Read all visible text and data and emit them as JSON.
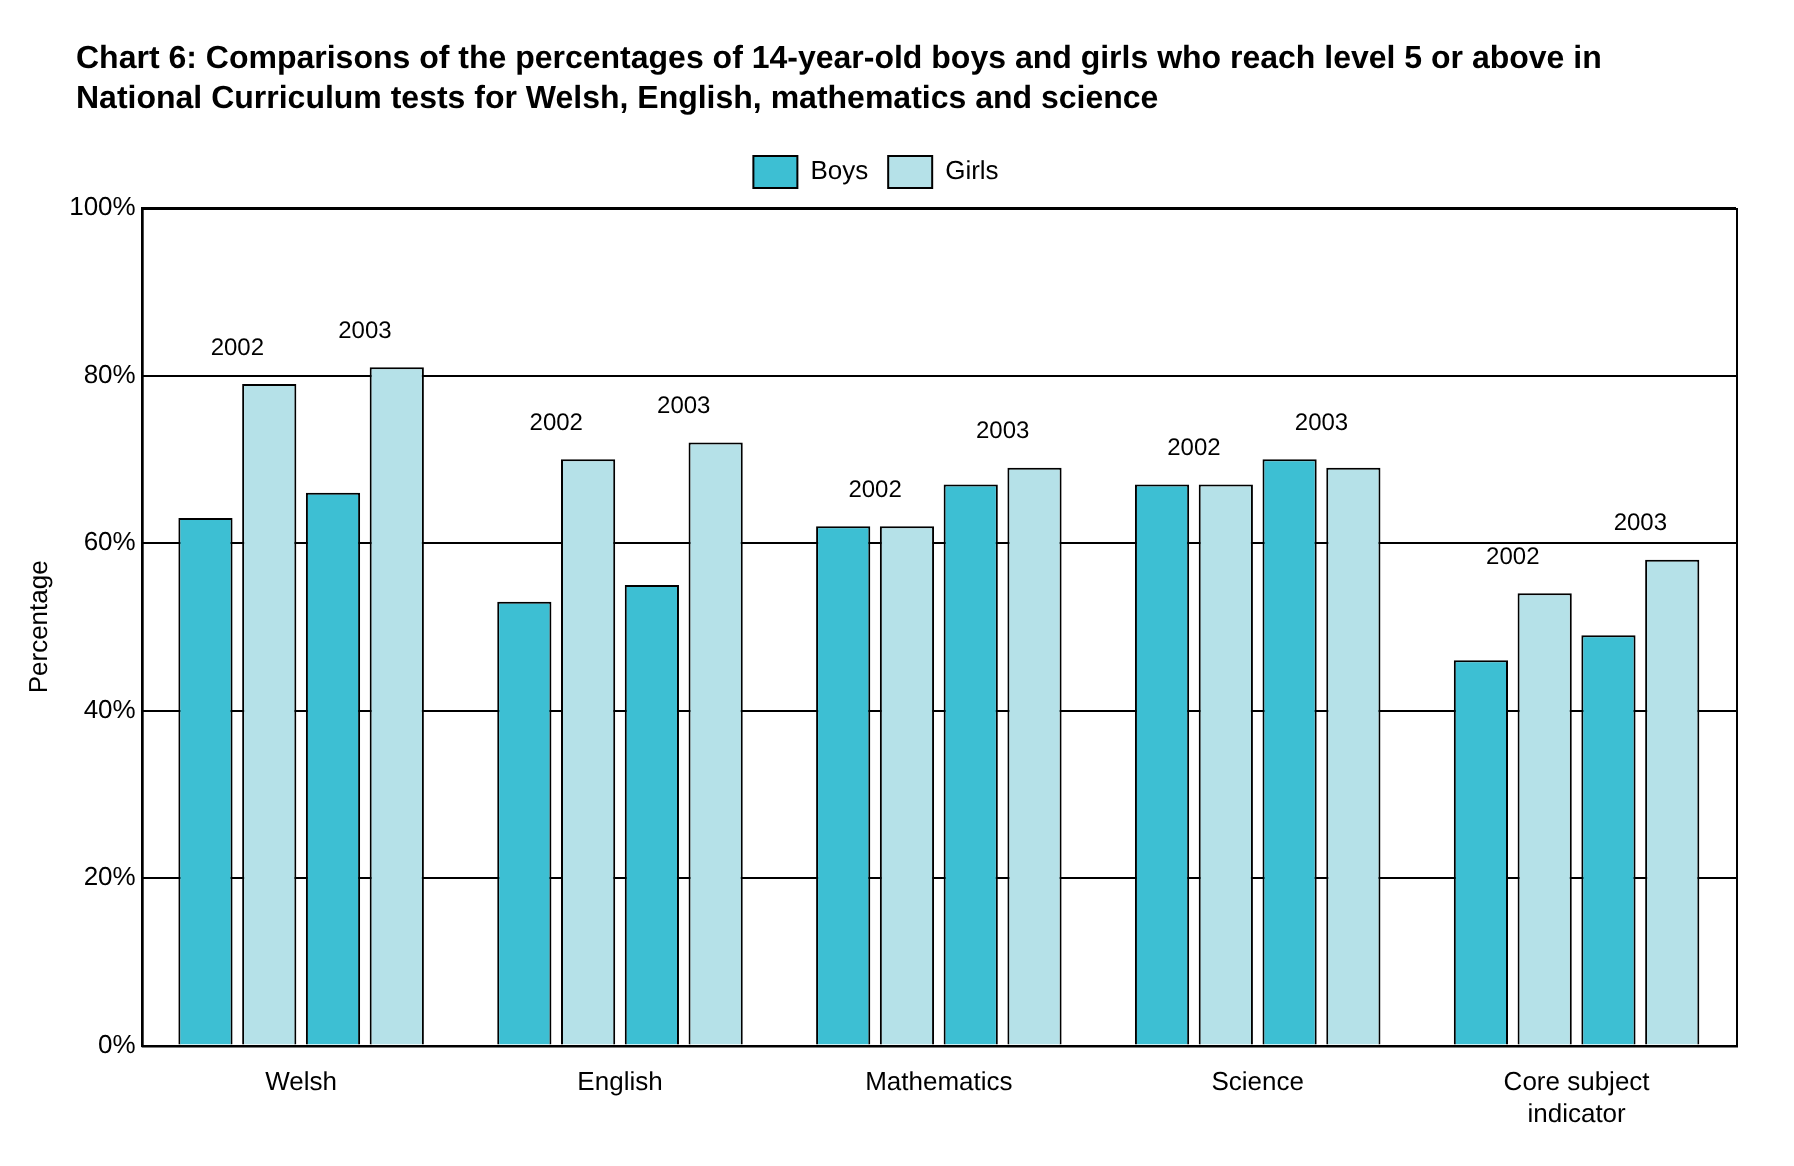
{
  "chart_data": {
    "type": "bar",
    "title": "Chart 6: Comparisons of the percentages of 14-year-old boys and girls who reach level 5 or above in National Curriculum tests for Welsh, English, mathematics and science",
    "ylabel": "Percentage",
    "categories": [
      "Welsh",
      "English",
      "Mathematics",
      "Science",
      "Core subject indicator"
    ],
    "series": [
      {
        "name": "Boys",
        "color": "#3dbfd3",
        "values": [
          63,
          53,
          62,
          67,
          46
        ]
      },
      {
        "name": "Girls",
        "color": "#b5e1e8",
        "values": [
          79,
          70,
          62,
          67,
          54
        ]
      },
      {
        "color": "#3dbfd3",
        "values": [
          66,
          55,
          67,
          70,
          49
        ]
      },
      {
        "color": "#b5e1e8",
        "values": [
          81,
          72,
          69,
          69,
          58
        ]
      }
    ],
    "ylim": [
      0,
      100
    ],
    "yticks": [
      {
        "value": 0,
        "label": "0%"
      },
      {
        "value": 20,
        "label": "20%"
      },
      {
        "value": 40,
        "label": "40%"
      },
      {
        "value": 60,
        "label": "60%"
      },
      {
        "value": 80,
        "label": "80%"
      },
      {
        "value": 100,
        "label": "100%"
      }
    ],
    "grid": "y",
    "legend": "top",
    "annotations": [
      "2002",
      "2003",
      "2002",
      "2003",
      "2002",
      "2003",
      "2002",
      "2003",
      "2002",
      "2003"
    ]
  }
}
